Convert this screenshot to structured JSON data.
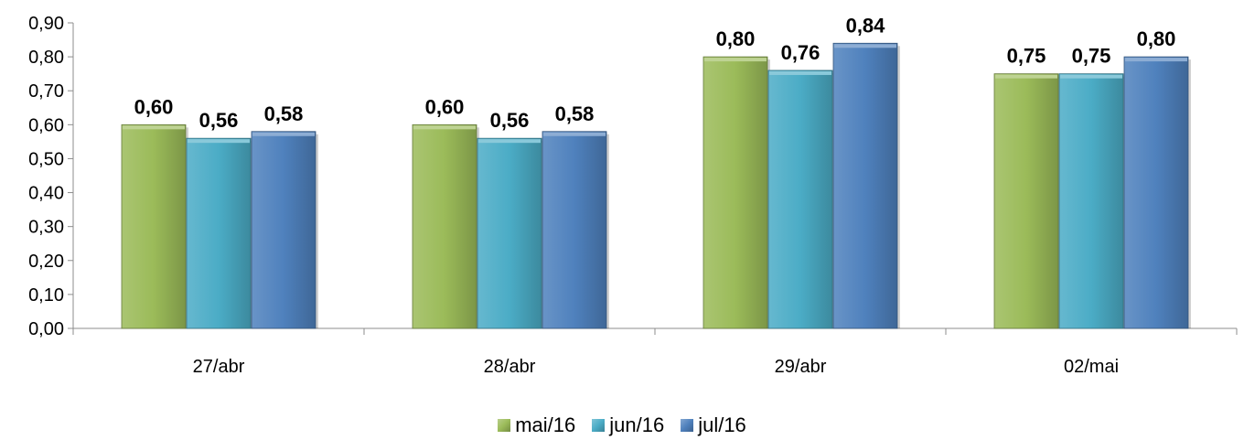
{
  "chart_data": {
    "type": "bar",
    "categories": [
      "27/abr",
      "28/abr",
      "29/abr",
      "02/mai"
    ],
    "series": [
      {
        "name": "mai/16",
        "values": [
          0.6,
          0.6,
          0.8,
          0.75
        ],
        "labels": [
          "0,60",
          "0,60",
          "0,80",
          "0,75"
        ],
        "color": "#9BBB59"
      },
      {
        "name": "jun/16",
        "values": [
          0.56,
          0.56,
          0.76,
          0.75
        ],
        "labels": [
          "0,56",
          "0,56",
          "0,76",
          "0,75"
        ],
        "color": "#4BACC6"
      },
      {
        "name": "jul/16",
        "values": [
          0.58,
          0.58,
          0.84,
          0.8
        ],
        "labels": [
          "0,58",
          "0,58",
          "0,84",
          "0,80"
        ],
        "color": "#4F81BD"
      }
    ],
    "ylim": [
      0,
      0.9
    ],
    "yticks": [
      "0,00",
      "0,10",
      "0,20",
      "0,30",
      "0,40",
      "0,50",
      "0,60",
      "0,70",
      "0,80",
      "0,90"
    ],
    "grid": false,
    "legend": "bottom"
  }
}
